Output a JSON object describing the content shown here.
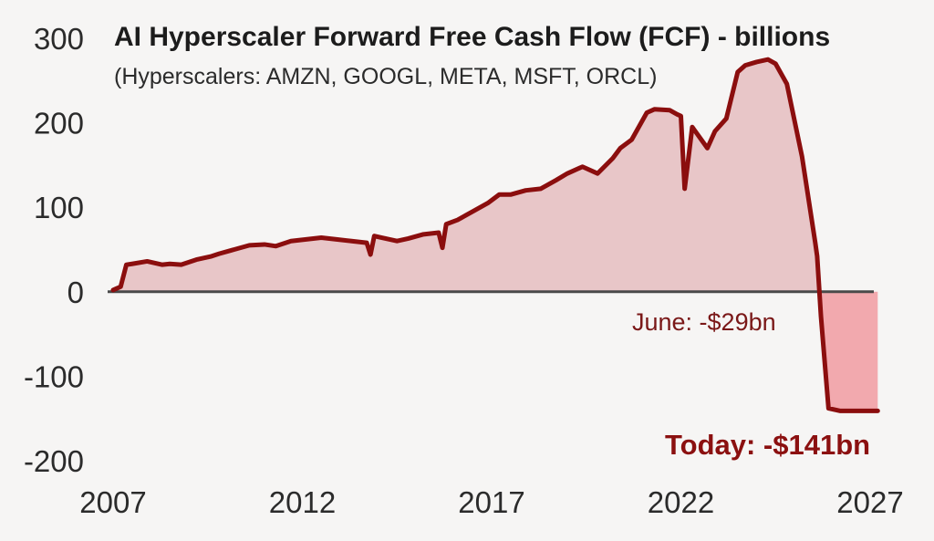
{
  "chart_data": {
    "type": "area",
    "title": "AI Hyperscaler Forward Free Cash Flow (FCF) - billions",
    "subtitle": "(Hyperscalers: AMZN, GOOGL, META, MSFT, ORCL)",
    "xlabel": "",
    "ylabel": "",
    "xlim": [
      2007,
      2027
    ],
    "ylim": [
      -200,
      300
    ],
    "x_ticks": [
      2007,
      2012,
      2017,
      2022,
      2027
    ],
    "y_ticks": [
      300,
      200,
      100,
      0,
      -100,
      -200
    ],
    "x_tick_labels": [
      "2007",
      "2012",
      "2017",
      "2022",
      "2027"
    ],
    "y_tick_labels": [
      "300",
      "200",
      "100",
      "0",
      "-100",
      "-200"
    ],
    "grid": false,
    "legend": "none",
    "colors": {
      "line": "#8b0e0e",
      "area_positive": "#e8c6c8",
      "area_negative": "#f2a9ae",
      "zero_line": "#4a4a4a",
      "background": "#f6f5f4"
    },
    "series": [
      {
        "x": [
          2007.0,
          2007.2,
          2007.35,
          2007.5,
          2007.9,
          2008.3,
          2008.5,
          2008.8,
          2009.2,
          2009.6,
          2009.8,
          2010.2,
          2010.6,
          2011.0,
          2011.3,
          2011.7,
          2012.1,
          2012.5,
          2012.9,
          2013.3,
          2013.7,
          2013.8,
          2013.9,
          2014.1,
          2014.5,
          2014.8,
          2015.2,
          2015.6,
          2015.7,
          2015.8,
          2016.1,
          2016.5,
          2016.9,
          2017.2,
          2017.5,
          2017.9,
          2018.3,
          2018.7,
          2019.0,
          2019.4,
          2019.8,
          2020.2,
          2020.4,
          2020.7,
          2021.1,
          2021.3,
          2021.7,
          2021.9,
          2022.0,
          2022.1,
          2022.3,
          2022.7,
          2022.9,
          2023.2,
          2023.5,
          2023.7,
          2024.0,
          2024.3,
          2024.5,
          2024.8,
          2025.2,
          2025.55,
          2025.6,
          2025.7,
          2025.9,
          2026.2,
          2026.6,
          2026.9,
          2027.2
        ],
        "y": [
          2,
          6,
          32,
          33,
          36,
          32,
          33,
          32,
          38,
          42,
          45,
          50,
          55,
          56,
          54,
          60,
          62,
          64,
          62,
          60,
          58,
          44,
          66,
          64,
          60,
          63,
          68,
          70,
          52,
          80,
          85,
          95,
          105,
          115,
          115,
          120,
          122,
          132,
          140,
          148,
          140,
          158,
          170,
          180,
          212,
          216,
          215,
          210,
          208,
          122,
          195,
          170,
          190,
          205,
          260,
          268,
          272,
          275,
          270,
          246,
          160,
          58,
          42,
          -29,
          -138,
          -141,
          -141,
          -141,
          -141
        ]
      }
    ],
    "annotations": [
      {
        "text": "June: -$29bn",
        "x": 2025.6,
        "y": -29
      },
      {
        "text": "Today: -$141bn",
        "x": 2027.2,
        "y": -141
      }
    ]
  }
}
